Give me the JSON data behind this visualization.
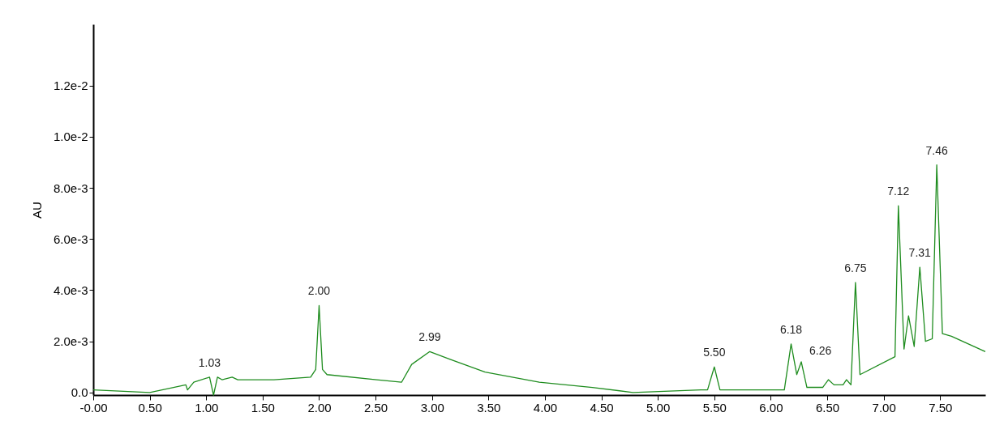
{
  "chart_data": {
    "type": "line",
    "ylabel": "AU",
    "grid": false,
    "marker": "none",
    "line_style": "solid",
    "xlim": [
      0,
      7.9
    ],
    "ylim": [
      -0.0001,
      0.0144
    ],
    "xticks": [
      {
        "value": 0,
        "label": "-0.00"
      },
      {
        "value": 0.5,
        "label": "0.50"
      },
      {
        "value": 1,
        "label": "1.00"
      },
      {
        "value": 1.5,
        "label": "1.50"
      },
      {
        "value": 2,
        "label": "2.00"
      },
      {
        "value": 2.5,
        "label": "2.50"
      },
      {
        "value": 3,
        "label": "3.00"
      },
      {
        "value": 3.5,
        "label": "3.50"
      },
      {
        "value": 4,
        "label": "4.00"
      },
      {
        "value": 4.5,
        "label": "4.50"
      },
      {
        "value": 5,
        "label": "5.00"
      },
      {
        "value": 5.5,
        "label": "5.50"
      },
      {
        "value": 6,
        "label": "6.00"
      },
      {
        "value": 6.5,
        "label": "6.50"
      },
      {
        "value": 7,
        "label": "7.00"
      },
      {
        "value": 7.5,
        "label": "7.50"
      }
    ],
    "yticks": [
      {
        "value": 0,
        "label": "0.0"
      },
      {
        "value": 0.002,
        "label": "2.0e-3"
      },
      {
        "value": 0.004,
        "label": "4.0e-3"
      },
      {
        "value": 0.006,
        "label": "6.0e-3"
      },
      {
        "value": 0.008,
        "label": "8.0e-3"
      },
      {
        "value": 0.01,
        "label": "1.0e-2"
      },
      {
        "value": 0.012,
        "label": "1.2e-2"
      }
    ],
    "series": [
      {
        "color": "#1e8c1e",
        "x": [
          0,
          0.5,
          0.82,
          0.835,
          0.89,
          1.03,
          1.065,
          1.1,
          1.14,
          1.23,
          1.28,
          1.6,
          1.925,
          1.97,
          2.0,
          2.03,
          2.07,
          2.51,
          2.73,
          2.82,
          2.98,
          3.16,
          3.47,
          3.95,
          4.42,
          4.78,
          5.38,
          5.44,
          5.5,
          5.55,
          6.12,
          6.18,
          6.23,
          6.27,
          6.32,
          6.46,
          6.51,
          6.56,
          6.64,
          6.67,
          6.71,
          6.75,
          6.79,
          7.1,
          7.13,
          7.18,
          7.22,
          7.27,
          7.32,
          7.37,
          7.43,
          7.47,
          7.52,
          7.6,
          7.9
        ],
        "values": [
          0.0001,
          0.0,
          0.0003,
          0.0001,
          0.0004,
          0.0006,
          -0.0001,
          0.0006,
          0.0005,
          0.0006,
          0.0005,
          0.0005,
          0.0006,
          0.0009,
          0.0034,
          0.0009,
          0.0007,
          0.0005,
          0.0004,
          0.0011,
          0.0016,
          0.0013,
          0.0008,
          0.0004,
          0.0002,
          0.0,
          0.0001,
          0.0001,
          0.001,
          0.0001,
          0.0001,
          0.0019,
          0.0007,
          0.0012,
          0.0002,
          0.0002,
          0.0005,
          0.0003,
          0.0003,
          0.0005,
          0.0003,
          0.0043,
          0.0007,
          0.0014,
          0.0073,
          0.0017,
          0.003,
          0.0018,
          0.0049,
          0.002,
          0.0021,
          0.0089,
          0.0023,
          0.0022,
          0.0016
        ]
      }
    ],
    "annotations": [
      {
        "text": "1.03",
        "x": 1.03,
        "y": 0.0006
      },
      {
        "text": "2.00",
        "x": 2.0,
        "y": 0.0034
      },
      {
        "text": "2.99",
        "x": 2.98,
        "y": 0.0016
      },
      {
        "text": "5.50",
        "x": 5.5,
        "y": 0.001
      },
      {
        "text": "6.18",
        "x": 6.18,
        "y": 0.0019
      },
      {
        "text": "6.26",
        "x": 6.27,
        "y": 0.0012
      },
      {
        "text": "6.75",
        "x": 6.75,
        "y": 0.0043
      },
      {
        "text": "7.12",
        "x": 7.13,
        "y": 0.0073
      },
      {
        "text": "7.31",
        "x": 7.32,
        "y": 0.0049
      },
      {
        "text": "7.46",
        "x": 7.47,
        "y": 0.0089
      }
    ]
  }
}
